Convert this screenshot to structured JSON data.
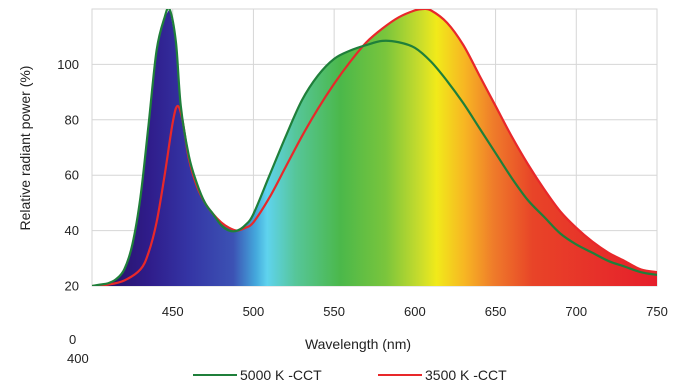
{
  "chart_data": {
    "type": "area",
    "xlabel": "Wavelength (nm)",
    "ylabel": "Relative radiant power (%)",
    "xlim": [
      400,
      750
    ],
    "ylim": [
      20,
      120
    ],
    "x_ticks": [
      "450",
      "500",
      "550",
      "600",
      "650",
      "700",
      "750"
    ],
    "y_ticks": [
      "20",
      "40",
      "60",
      "80",
      "100"
    ],
    "grid": true,
    "stray_tick_labels": {
      "y_origin": "0",
      "x_origin": "400"
    },
    "legend_position": "bottom-center",
    "series": [
      {
        "name": "5000 K -CCT",
        "color": "#1f7f3a",
        "x": [
          400,
          405,
          410,
          415,
          420,
          425,
          430,
          435,
          440,
          445,
          448,
          452,
          455,
          460,
          465,
          470,
          475,
          480,
          485,
          490,
          495,
          500,
          510,
          520,
          530,
          540,
          550,
          560,
          570,
          580,
          590,
          600,
          610,
          620,
          630,
          640,
          650,
          660,
          670,
          680,
          690,
          700,
          710,
          720,
          730,
          740,
          750
        ],
        "y": [
          20,
          20.5,
          21,
          22.5,
          26,
          35,
          52,
          78,
          105,
          117,
          120,
          108,
          85,
          67,
          57,
          50,
          46,
          42,
          40,
          40,
          42,
          46,
          60,
          74,
          87,
          96,
          102,
          105,
          107,
          108.5,
          108,
          106,
          101,
          94,
          86,
          77,
          68,
          59,
          51,
          45,
          39,
          35,
          32,
          29,
          27,
          25,
          24
        ]
      },
      {
        "name": "3500 K -CCT",
        "color": "#e8282a",
        "x": [
          400,
          410,
          420,
          430,
          435,
          440,
          445,
          450,
          453,
          456,
          460,
          465,
          470,
          475,
          480,
          485,
          490,
          495,
          500,
          510,
          520,
          530,
          540,
          550,
          560,
          570,
          580,
          590,
          600,
          605,
          610,
          620,
          630,
          640,
          650,
          660,
          670,
          680,
          690,
          700,
          710,
          720,
          730,
          740,
          750
        ],
        "y": [
          20,
          20.5,
          22,
          26,
          32,
          43,
          60,
          79,
          85,
          80,
          66,
          56,
          50,
          46,
          43,
          41,
          40,
          41,
          43,
          52,
          63,
          74,
          84,
          93,
          101,
          108,
          113,
          117,
          119.5,
          120,
          119.5,
          115,
          107,
          96,
          85,
          74,
          64,
          55,
          47,
          41,
          36,
          32,
          29,
          26,
          25
        ]
      }
    ]
  }
}
